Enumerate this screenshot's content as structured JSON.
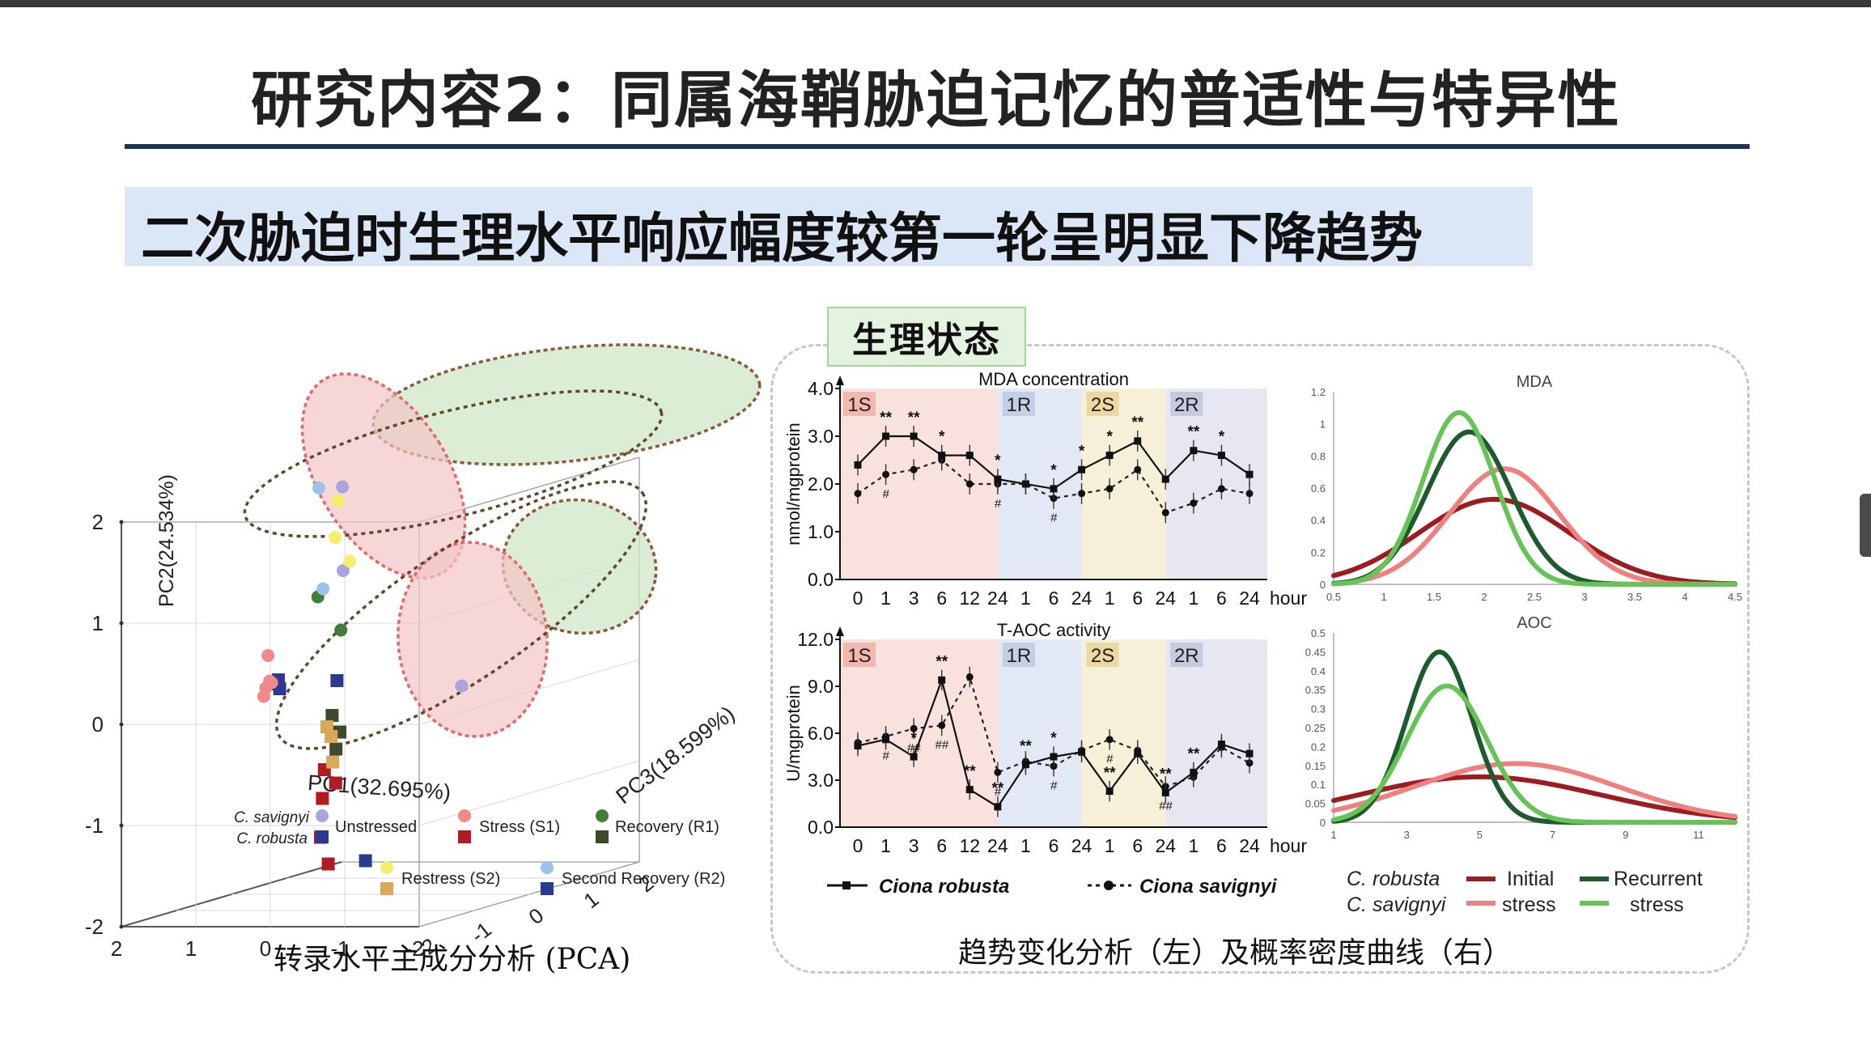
{
  "slide": {
    "title": "研究内容2：同属海鞘胁迫记忆的普适性与特异性",
    "subtitle": "二次胁迫时生理水平响应幅度较第一轮呈明显下降趋势",
    "badge": "生理状态",
    "caption_left": "转录水平主成分分析 (PCA)",
    "caption_right": "趋势变化分析（左）及概率密度曲线（右）"
  },
  "colors": {
    "unstressed_sav": "#a9a4dd",
    "unstressed_rob": "#2b3a8f",
    "stress_sav": "#f08a8a",
    "stress_rob": "#b01c22",
    "recovery_sav": "#3f7f3a",
    "recovery_rob": "#3d4a2c",
    "restress_sav": "#f3ef6a",
    "restress_rob": "#dba85a",
    "secrec_sav": "#9cc3ea",
    "secrec_rob": "#2b3a8f",
    "initial_rob": "#9b1d22",
    "initial_sav": "#ef8080",
    "recurrent_rob": "#1d5a2e",
    "recurrent_sav": "#66c356"
  },
  "chart_data": [
    {
      "type": "scatter",
      "title": "",
      "xlabel": "PC1(32.695%)",
      "ylabel": "PC2(24.534%)",
      "zlabel": "PC3(18.599%)",
      "y_ticks": [
        "2",
        "1",
        "0",
        "-1",
        "-2"
      ],
      "x_ticks": [
        "2",
        "1",
        "0",
        "-1",
        "-2"
      ],
      "z_ticks": [
        "-2",
        "-1",
        "0",
        "1",
        "2"
      ],
      "legend": {
        "species_sav": "C. savignyi",
        "species_rob": "C. robusta",
        "groups": [
          "Unstressed",
          "Stress (S1)",
          "Recovery (R1)",
          "Restress (S2)",
          "Second Recovery (R2)"
        ]
      },
      "series": [
        {
          "name": "Unstressed",
          "species": "C. savignyi",
          "points": [
            [
              -2.2,
              0.3,
              -1.5
            ],
            [
              0.5,
              1.2,
              0.0
            ],
            [
              1.1,
              1.9,
              0.8
            ]
          ]
        },
        {
          "name": "Unstressed",
          "species": "C. robusta",
          "points": [
            [
              -1.5,
              -1.3,
              -2.3
            ],
            [
              1.0,
              0.2,
              -0.5
            ],
            [
              1.5,
              0.0,
              0.2
            ],
            [
              1.8,
              0.0,
              0.5
            ]
          ]
        },
        {
          "name": "Stress (S1)",
          "species": "C. savignyi",
          "points": [
            [
              0.4,
              0.6,
              -1.5
            ],
            [
              0.5,
              0.3,
              -1.3
            ],
            [
              0.6,
              0.3,
              -1.2
            ],
            [
              0.8,
              0.2,
              -1.0
            ],
            [
              0.9,
              0.1,
              -0.9
            ]
          ]
        },
        {
          "name": "Stress (S1)",
          "species": "C. robusta",
          "points": [
            [
              0.6,
              -0.9,
              0.0
            ],
            [
              0.9,
              -0.8,
              0.2
            ],
            [
              1.0,
              -1.1,
              0.3
            ],
            [
              1.1,
              -1.5,
              0.4
            ],
            [
              0.7,
              -1.7,
              0.0
            ]
          ]
        },
        {
          "name": "Recovery (R1)",
          "species": "C. savignyi",
          "points": [
            [
              -0.8,
              0.9,
              -1.8
            ],
            [
              0.1,
              1.1,
              -1.0
            ]
          ]
        },
        {
          "name": "Recovery (R1)",
          "species": "C. robusta",
          "points": [
            [
              0.1,
              -0.3,
              -0.6
            ],
            [
              0.3,
              -0.5,
              -0.4
            ],
            [
              0.5,
              -0.2,
              -0.2
            ]
          ]
        },
        {
          "name": "Restress (S2)",
          "species": "C. savignyi",
          "points": [
            [
              1.2,
              1.4,
              0.8
            ],
            [
              1.3,
              1.1,
              1.2
            ],
            [
              1.9,
              1.6,
              1.8
            ]
          ]
        },
        {
          "name": "Restress (S2)",
          "species": "C. robusta",
          "points": [
            [
              1.4,
              -0.6,
              1.0
            ],
            [
              1.6,
              -0.9,
              1.3
            ],
            [
              1.9,
              -0.6,
              1.6
            ]
          ]
        },
        {
          "name": "Second Recovery (R2)",
          "species": "C. savignyi",
          "points": [
            [
              0.4,
              1.1,
              -0.5
            ],
            [
              0.9,
              2.0,
              0.1
            ]
          ]
        },
        {
          "name": "Second Recovery (R2)",
          "species": "C. robusta",
          "points": [
            [
              1.1,
              0.0,
              0.7
            ]
          ]
        }
      ]
    },
    {
      "type": "line",
      "title": "MDA concentration",
      "ylabel": "nmol/mgprotein",
      "xlabel": "hour",
      "ylim": [
        0,
        4
      ],
      "y_ticks": [
        "4.0",
        "3.0",
        "2.0",
        "1.0",
        "0.0"
      ],
      "x": [
        "0",
        "1",
        "3",
        "6",
        "12",
        "24",
        "1",
        "6",
        "24",
        "1",
        "6",
        "24",
        "1",
        "6",
        "24"
      ],
      "phases": [
        "1S",
        "1R",
        "2S",
        "2R"
      ],
      "series": [
        {
          "name": "Ciona robusta",
          "values": [
            2.4,
            3.0,
            3.0,
            2.6,
            2.6,
            2.1,
            2.0,
            1.9,
            2.3,
            2.6,
            2.9,
            2.1,
            2.7,
            2.6,
            2.2
          ]
        },
        {
          "name": "Ciona savignyi",
          "values": [
            1.8,
            2.2,
            2.3,
            2.5,
            2.0,
            2.0,
            2.0,
            1.7,
            1.8,
            1.9,
            2.3,
            1.4,
            1.6,
            1.9,
            1.8
          ]
        }
      ],
      "annotations": [
        "**",
        "**",
        "*",
        "*",
        "*",
        "*",
        "*",
        "**",
        "**",
        "*",
        "#",
        "#",
        "#"
      ]
    },
    {
      "type": "line",
      "title": "T-AOC activity",
      "ylabel": "U/mgprotein",
      "xlabel": "hour",
      "ylim": [
        0,
        12
      ],
      "y_ticks": [
        "12.0",
        "9.0",
        "6.0",
        "3.0",
        "0.0"
      ],
      "x": [
        "0",
        "1",
        "3",
        "6",
        "12",
        "24",
        "1",
        "6",
        "24",
        "1",
        "6",
        "24",
        "1",
        "6",
        "24"
      ],
      "phases": [
        "1S",
        "1R",
        "2S",
        "2R"
      ],
      "series": [
        {
          "name": "Ciona robusta",
          "values": [
            5.2,
            5.6,
            4.5,
            9.4,
            2.4,
            1.3,
            4.0,
            4.5,
            4.8,
            2.3,
            4.7,
            2.2,
            3.5,
            5.3,
            4.7
          ]
        },
        {
          "name": "Ciona savignyi",
          "values": [
            5.4,
            5.8,
            6.3,
            6.5,
            9.6,
            3.5,
            4.2,
            3.9,
            4.9,
            5.6,
            4.9,
            2.6,
            3.2,
            5.1,
            4.1
          ]
        }
      ],
      "annotations": [
        "**",
        "*",
        "**",
        "**",
        "**",
        "**",
        "*",
        "**",
        "**",
        "**",
        "##",
        "##",
        "##",
        "##",
        "#",
        "#",
        "#",
        "##"
      ]
    },
    {
      "type": "area",
      "title": "MDA",
      "xlim": [
        0.5,
        4.5
      ],
      "ylim": [
        0,
        1.2
      ],
      "x_ticks": [
        "0.5",
        "1",
        "1.5",
        "2",
        "2.5",
        "3",
        "3.5",
        "4",
        "4.5"
      ],
      "y_ticks": [
        "1.2",
        "1",
        "0.8",
        "0.6",
        "0.4",
        "0.2",
        "0"
      ],
      "series": [
        {
          "name": "C. robusta Initial stress",
          "mean": 2.1,
          "sd": 0.75,
          "peak": 0.53
        },
        {
          "name": "C. savignyi Initial stress",
          "mean": 2.2,
          "sd": 0.55,
          "peak": 0.72
        },
        {
          "name": "C. robusta Recurrent stress",
          "mean": 1.85,
          "sd": 0.42,
          "peak": 0.95
        },
        {
          "name": "C. savignyi Recurrent stress",
          "mean": 1.75,
          "sd": 0.36,
          "peak": 1.07
        }
      ]
    },
    {
      "type": "area",
      "title": "AOC",
      "xlim": [
        1,
        12
      ],
      "ylim": [
        0,
        0.5
      ],
      "x_ticks": [
        "1",
        "3",
        "5",
        "7",
        "9",
        "11"
      ],
      "y_ticks": [
        "0.5",
        "0.45",
        "0.4",
        "0.35",
        "0.3",
        "0.25",
        "0.2",
        "0.15",
        "0.1",
        "0.05",
        "0"
      ],
      "series": [
        {
          "name": "C. robusta Initial stress",
          "mean": 5.0,
          "sd": 3.3,
          "peak": 0.12
        },
        {
          "name": "C. savignyi Initial stress",
          "mean": 6.0,
          "sd": 2.8,
          "peak": 0.155
        },
        {
          "name": "C. robusta Recurrent stress",
          "mean": 3.9,
          "sd": 0.9,
          "peak": 0.45
        },
        {
          "name": "C. savignyi Recurrent stress",
          "mean": 4.1,
          "sd": 1.1,
          "peak": 0.36
        }
      ]
    }
  ],
  "legends": {
    "line_rob": "Ciona robusta",
    "line_sav": "Ciona savignyi",
    "density_sp1": "C. robusta",
    "density_sp2": "C. savignyi",
    "initial_a": "Initial",
    "initial_b": "stress",
    "recurrent_a": "Recurrent",
    "recurrent_b": "stress"
  }
}
